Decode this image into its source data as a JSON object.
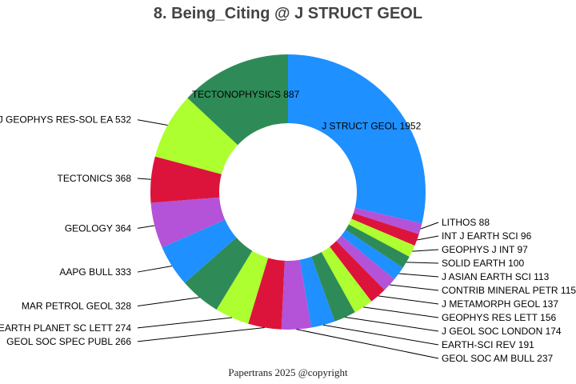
{
  "chart_data": {
    "type": "pie",
    "title": "8. Being_Citing @ J STRUCT GEOL",
    "donut": true,
    "slices": [
      {
        "label": "J STRUCT GEOL",
        "value": 1952,
        "color": "#1E90FF"
      },
      {
        "label": "LITHOS",
        "value": 88,
        "color": "#B452D8"
      },
      {
        "label": "INT J EARTH SCI",
        "value": 96,
        "color": "#DC143C"
      },
      {
        "label": "GEOPHYS J INT",
        "value": 97,
        "color": "#ADFF2F"
      },
      {
        "label": "SOLID EARTH",
        "value": 100,
        "color": "#2E8B57"
      },
      {
        "label": "J ASIAN EARTH SCI",
        "value": 113,
        "color": "#1E90FF"
      },
      {
        "label": "CONTRIB MINERAL PETR",
        "value": 115,
        "color": "#B452D8"
      },
      {
        "label": "J METAMORPH GEOL",
        "value": 137,
        "color": "#DC143C"
      },
      {
        "label": "GEOPHYS RES LETT",
        "value": 156,
        "color": "#ADFF2F"
      },
      {
        "label": "J GEOL SOC LONDON",
        "value": 174,
        "color": "#2E8B57"
      },
      {
        "label": "EARTH-SCI REV",
        "value": 191,
        "color": "#1E90FF"
      },
      {
        "label": "GEOL SOC AM BULL",
        "value": 237,
        "color": "#B452D8"
      },
      {
        "label": "GEOL SOC SPEC PUBL",
        "value": 266,
        "color": "#DC143C"
      },
      {
        "label": "EARTH PLANET SC LETT",
        "value": 274,
        "color": "#ADFF2F"
      },
      {
        "label": "MAR PETROL GEOL",
        "value": 328,
        "color": "#2E8B57"
      },
      {
        "label": "AAPG BULL",
        "value": 333,
        "color": "#1E90FF"
      },
      {
        "label": "GEOLOGY",
        "value": 364,
        "color": "#B452D8"
      },
      {
        "label": "TECTONICS",
        "value": 368,
        "color": "#DC143C"
      },
      {
        "label": "J GEOPHYS RES-SOL EA",
        "value": 532,
        "color": "#ADFF2F"
      },
      {
        "label": "TECTONOPHYSICS",
        "value": 887,
        "color": "#2E8B57"
      }
    ]
  },
  "footer": "Papertrans 2025 @copyright"
}
